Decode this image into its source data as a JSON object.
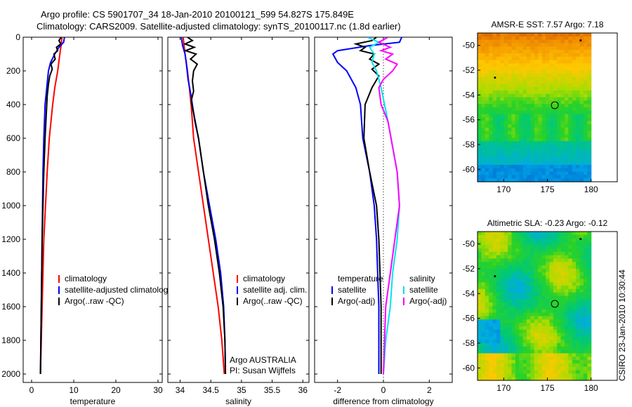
{
  "header": {
    "title_line1": "Argo profile: CS 5901707_34 18-Jan-2010 20100121_599 54.827S 175.849E",
    "title_line2": "Climatology: CARS2009. Satellite-adjusted climatology: synTS_20100117.nc (1.8d earlier)"
  },
  "colors": {
    "climatology": "#ff0000",
    "satellite": "#0000ff",
    "argo": "#000000",
    "sal_satellite": "#00e5ee",
    "sal_argo": "#ff00ff"
  },
  "footer_stamp": "CSIRO 23-Jan-2010 10:30:44",
  "chart_data": [
    {
      "type": "line",
      "id": "temperature",
      "xlabel": "temperature",
      "ylabel": "",
      "xlim": [
        -2,
        31
      ],
      "ylim": [
        2050,
        0
      ],
      "y_reversed": true,
      "xticks": [
        0,
        10,
        20,
        30
      ],
      "yticks": [
        0,
        200,
        400,
        600,
        800,
        1000,
        1200,
        1400,
        1600,
        1800,
        2000
      ],
      "legend": [
        "climatology",
        "satellite-adjusted climatology",
        "Argo(..raw -QC)"
      ],
      "legend_position": "lower-right",
      "series": [
        {
          "name": "climatology",
          "color": "#ff0000",
          "points": [
            [
              7.2,
              0
            ],
            [
              7.0,
              50
            ],
            [
              6.7,
              100
            ],
            [
              6.2,
              200
            ],
            [
              5.5,
              300
            ],
            [
              5.0,
              400
            ],
            [
              4.6,
              500
            ],
            [
              4.2,
              600
            ],
            [
              3.7,
              800
            ],
            [
              3.3,
              1000
            ],
            [
              2.9,
              1200
            ],
            [
              2.7,
              1400
            ],
            [
              2.5,
              1600
            ],
            [
              2.3,
              1800
            ],
            [
              2.1,
              2000
            ]
          ]
        },
        {
          "name": "satellite-adjusted climatology",
          "color": "#0000ff",
          "points": [
            [
              7.8,
              0
            ],
            [
              7.6,
              30
            ],
            [
              6.5,
              60
            ],
            [
              5.5,
              100
            ],
            [
              4.5,
              150
            ],
            [
              4.0,
              200
            ],
            [
              3.6,
              300
            ],
            [
              3.2,
              400
            ],
            [
              2.9,
              600
            ],
            [
              2.7,
              800
            ],
            [
              2.6,
              1000
            ],
            [
              2.5,
              1200
            ],
            [
              2.4,
              1400
            ],
            [
              2.3,
              1600
            ],
            [
              2.2,
              1800
            ],
            [
              2.1,
              2000
            ]
          ]
        },
        {
          "name": "Argo(..raw -QC)",
          "color": "#000000",
          "points": [
            [
              7.0,
              0
            ],
            [
              6.5,
              20
            ],
            [
              6.9,
              40
            ],
            [
              5.9,
              60
            ],
            [
              6.2,
              80
            ],
            [
              5.3,
              100
            ],
            [
              5.6,
              130
            ],
            [
              4.6,
              160
            ],
            [
              4.9,
              190
            ],
            [
              4.3,
              230
            ],
            [
              4.0,
              280
            ],
            [
              3.7,
              350
            ],
            [
              3.5,
              450
            ],
            [
              3.2,
              600
            ],
            [
              2.9,
              800
            ],
            [
              2.7,
              1000
            ],
            [
              2.5,
              1200
            ],
            [
              2.4,
              1400
            ],
            [
              2.3,
              1600
            ],
            [
              2.2,
              1800
            ],
            [
              2.1,
              2000
            ]
          ]
        }
      ]
    },
    {
      "type": "line",
      "id": "salinity",
      "xlabel": "salinity",
      "ylabel": "",
      "xlim": [
        33.8,
        36.1
      ],
      "ylim": [
        2050,
        0
      ],
      "y_reversed": true,
      "xticks": [
        34,
        34.5,
        35,
        35.5,
        36
      ],
      "legend": [
        "climatology",
        "satellite adj. clim.",
        "Argo(..raw -QC)"
      ],
      "legend_position": "lower-right",
      "annotations": [
        "Argo AUSTRALIA",
        "PI: Susan Wijffels"
      ],
      "series": [
        {
          "name": "climatology",
          "color": "#ff0000",
          "points": [
            [
              34.05,
              0
            ],
            [
              34.08,
              100
            ],
            [
              34.12,
              200
            ],
            [
              34.15,
              300
            ],
            [
              34.18,
              400
            ],
            [
              34.22,
              600
            ],
            [
              34.3,
              800
            ],
            [
              34.38,
              1000
            ],
            [
              34.46,
              1200
            ],
            [
              34.54,
              1400
            ],
            [
              34.62,
              1600
            ],
            [
              34.68,
              1800
            ],
            [
              34.72,
              2000
            ]
          ]
        },
        {
          "name": "satellite adj. clim.",
          "color": "#0000ff",
          "points": [
            [
              34.02,
              0
            ],
            [
              34.04,
              50
            ],
            [
              34.08,
              100
            ],
            [
              34.1,
              150
            ],
            [
              34.13,
              250
            ],
            [
              34.18,
              350
            ],
            [
              34.24,
              500
            ],
            [
              34.3,
              600
            ],
            [
              34.38,
              800
            ],
            [
              34.48,
              1000
            ],
            [
              34.58,
              1200
            ],
            [
              34.66,
              1400
            ],
            [
              34.71,
              1600
            ],
            [
              34.73,
              1800
            ],
            [
              34.74,
              2000
            ]
          ]
        },
        {
          "name": "Argo(..raw -QC)",
          "color": "#000000",
          "points": [
            [
              34.12,
              0
            ],
            [
              34.2,
              20
            ],
            [
              34.08,
              40
            ],
            [
              34.23,
              60
            ],
            [
              34.09,
              80
            ],
            [
              34.26,
              100
            ],
            [
              34.17,
              130
            ],
            [
              34.28,
              160
            ],
            [
              34.22,
              200
            ],
            [
              34.2,
              260
            ],
            [
              34.22,
              320
            ],
            [
              34.18,
              380
            ],
            [
              34.22,
              450
            ],
            [
              34.3,
              600
            ],
            [
              34.38,
              800
            ],
            [
              34.46,
              1000
            ],
            [
              34.56,
              1200
            ],
            [
              34.64,
              1400
            ],
            [
              34.7,
              1600
            ],
            [
              34.73,
              1800
            ],
            [
              34.74,
              2000
            ]
          ]
        }
      ]
    },
    {
      "type": "line",
      "id": "difference",
      "xlabel": "difference from climatology",
      "ylabel": "",
      "xlim": [
        -3,
        3
      ],
      "ylim": [
        2050,
        0
      ],
      "y_reversed": true,
      "xticks": [
        -2,
        0,
        2
      ],
      "reference_line_x": 0,
      "legend": [
        "temperature",
        "satellite",
        "Argo(-adj)",
        "salinity",
        "satellite",
        "Argo(-adj)"
      ],
      "legend_position": "lower-center",
      "series": [
        {
          "name": "satellite",
          "group": "temperature",
          "color": "#0000ff",
          "points": [
            [
              0.8,
              0
            ],
            [
              0.7,
              30
            ],
            [
              -0.6,
              50
            ],
            [
              -2.0,
              80
            ],
            [
              -2.2,
              100
            ],
            [
              -2.0,
              150
            ],
            [
              -1.6,
              200
            ],
            [
              -1.2,
              300
            ],
            [
              -1.0,
              400
            ],
            [
              -0.9,
              600
            ],
            [
              -0.6,
              800
            ],
            [
              -0.4,
              1000
            ],
            [
              -0.3,
              1200
            ],
            [
              -0.25,
              1400
            ],
            [
              -0.2,
              1600
            ],
            [
              -0.2,
              1800
            ],
            [
              -0.2,
              2000
            ]
          ]
        },
        {
          "name": "Argo(-adj)",
          "group": "temperature",
          "color": "#000000",
          "points": [
            [
              -0.3,
              0
            ],
            [
              -0.5,
              20
            ],
            [
              -1.2,
              40
            ],
            [
              -0.8,
              60
            ],
            [
              -1.0,
              80
            ],
            [
              -0.4,
              100
            ],
            [
              -0.6,
              130
            ],
            [
              -0.2,
              160
            ],
            [
              -0.5,
              190
            ],
            [
              -0.2,
              230
            ],
            [
              -0.5,
              300
            ],
            [
              -0.8,
              400
            ],
            [
              -0.85,
              600
            ],
            [
              -0.6,
              800
            ],
            [
              -0.3,
              1000
            ],
            [
              -0.2,
              1200
            ],
            [
              -0.15,
              1400
            ],
            [
              -0.1,
              1600
            ],
            [
              -0.1,
              1800
            ],
            [
              -0.1,
              2000
            ]
          ]
        },
        {
          "name": "satellite",
          "group": "salinity",
          "color": "#00e5ee",
          "points": [
            [
              -0.7,
              0
            ],
            [
              -0.2,
              30
            ],
            [
              -0.6,
              60
            ],
            [
              -0.4,
              100
            ],
            [
              -0.5,
              150
            ],
            [
              -0.3,
              200
            ],
            [
              -0.1,
              300
            ],
            [
              0.2,
              500
            ],
            [
              0.6,
              800
            ],
            [
              0.7,
              1000
            ],
            [
              0.6,
              1200
            ],
            [
              0.4,
              1400
            ],
            [
              0.3,
              1600
            ],
            [
              0.1,
              1800
            ],
            [
              0.0,
              2000
            ]
          ]
        },
        {
          "name": "Argo(-adj)",
          "group": "salinity",
          "color": "#ff00ff",
          "points": [
            [
              0.2,
              0
            ],
            [
              -0.2,
              30
            ],
            [
              0.3,
              60
            ],
            [
              -0.1,
              80
            ],
            [
              0.4,
              100
            ],
            [
              0.1,
              130
            ],
            [
              0.6,
              160
            ],
            [
              0.4,
              200
            ],
            [
              0.0,
              250
            ],
            [
              -0.2,
              300
            ],
            [
              -0.1,
              400
            ],
            [
              0.2,
              500
            ],
            [
              0.6,
              800
            ],
            [
              0.7,
              1000
            ],
            [
              0.5,
              1200
            ],
            [
              0.3,
              1400
            ],
            [
              0.1,
              1600
            ],
            [
              0.05,
              1800
            ],
            [
              0.0,
              2000
            ]
          ]
        }
      ]
    },
    {
      "type": "heatmap",
      "id": "sst_map",
      "title": "AMSR-E SST: 7.57 Argo: 7.18",
      "xlim": [
        167,
        183
      ],
      "ylim": [
        -61,
        -49
      ],
      "xticks": [
        170,
        175,
        180
      ],
      "yticks": [
        -50,
        -52,
        -54,
        -56,
        -58,
        -60
      ],
      "data_extent_x": [
        167,
        180
      ],
      "data_extent_y": [
        -61,
        -49
      ],
      "profile_marker": [
        175.85,
        -54.83
      ],
      "other_markers": [
        [
          169.0,
          -52.6
        ],
        [
          178.8,
          -49.6
        ]
      ]
    },
    {
      "type": "heatmap",
      "id": "sla_map",
      "title": "Altimetric SLA: -0.23 Argo: -0.12",
      "xlim": [
        167,
        183
      ],
      "ylim": [
        -61,
        -49
      ],
      "xticks": [
        170,
        175,
        180
      ],
      "yticks": [
        -50,
        -52,
        -54,
        -56,
        -58,
        -60
      ],
      "data_extent_x": [
        167,
        180
      ],
      "data_extent_y": [
        -61,
        -49
      ],
      "profile_marker": [
        175.85,
        -54.83
      ],
      "other_markers": [
        [
          169.0,
          -52.6
        ],
        [
          178.8,
          -49.6
        ]
      ]
    }
  ]
}
